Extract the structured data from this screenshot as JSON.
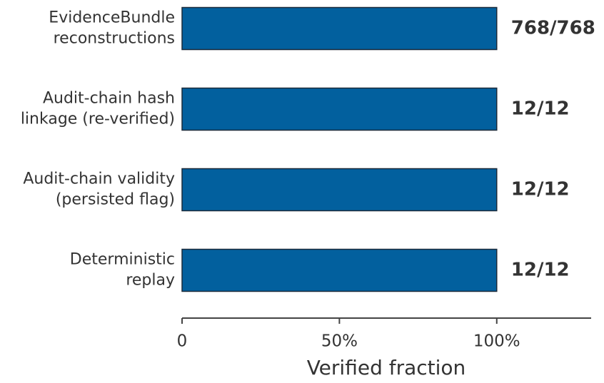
{
  "chart_data": {
    "type": "bar",
    "orientation": "horizontal",
    "categories": [
      [
        "EvidenceBundle",
        "reconstructions"
      ],
      [
        "Audit-chain hash",
        "linkage (re-verified)"
      ],
      [
        "Audit-chain validity",
        "(persisted flag)"
      ],
      [
        "Deterministic",
        "replay"
      ]
    ],
    "values": [
      100,
      100,
      100,
      100
    ],
    "value_labels": [
      "768/768",
      "12/12",
      "12/12",
      "12/12"
    ],
    "color": "#02609e",
    "xlabel": "Verified fraction",
    "xlim": [
      0,
      130
    ],
    "xticks": [
      0,
      {
        "value": 50,
        "label": "50%"
      },
      {
        "value": 100,
        "label": "100%"
      }
    ]
  }
}
